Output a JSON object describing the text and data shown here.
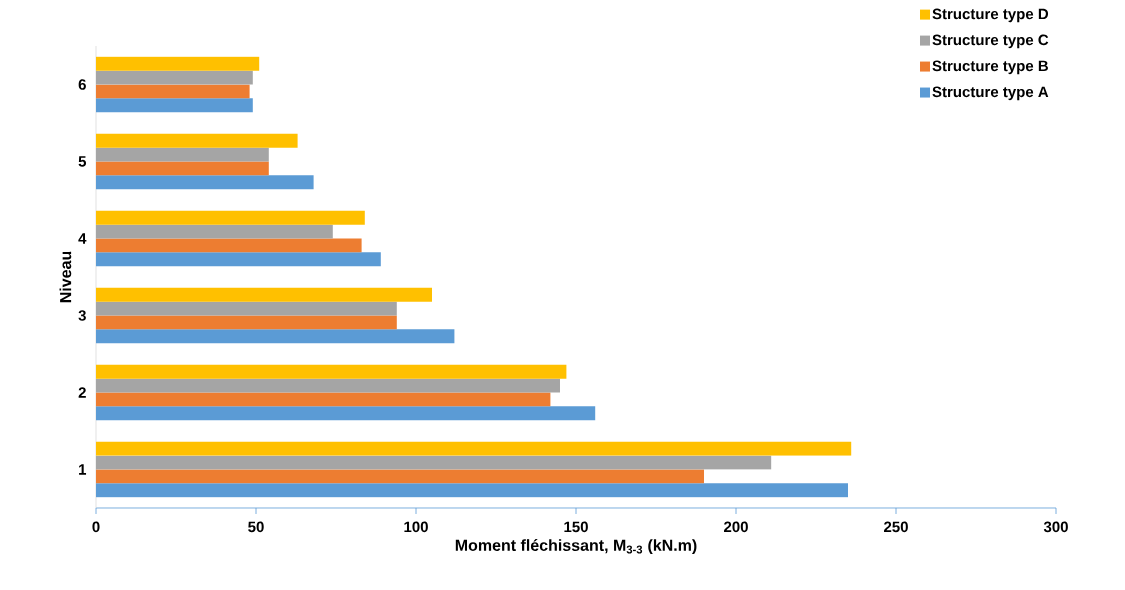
{
  "chart_data": {
    "type": "bar",
    "orientation": "horizontal",
    "xlabel": "Moment fléchissant, M$_{3-3}$ (kN.m)",
    "ylabel": "Niveau",
    "categories": [
      "6",
      "5",
      "4",
      "3",
      "2",
      "1"
    ],
    "series": [
      {
        "name": "Structure type A",
        "color": "#5b9bd5",
        "values": [
          49,
          68,
          89,
          112,
          156,
          235
        ]
      },
      {
        "name": "Structure type B",
        "color": "#ed7d31",
        "values": [
          48,
          54,
          83,
          94,
          142,
          190
        ]
      },
      {
        "name": "Structure type C",
        "color": "#a5a5a5",
        "values": [
          49,
          54,
          74,
          94,
          145,
          211
        ]
      },
      {
        "name": "Structure type D",
        "color": "#ffc000",
        "values": [
          51,
          63,
          84,
          105,
          147,
          236
        ]
      }
    ],
    "xlim": [
      0,
      300
    ],
    "xticks": [
      0,
      50,
      100,
      150,
      200,
      250,
      300
    ],
    "grid": false,
    "legend": "top right"
  }
}
